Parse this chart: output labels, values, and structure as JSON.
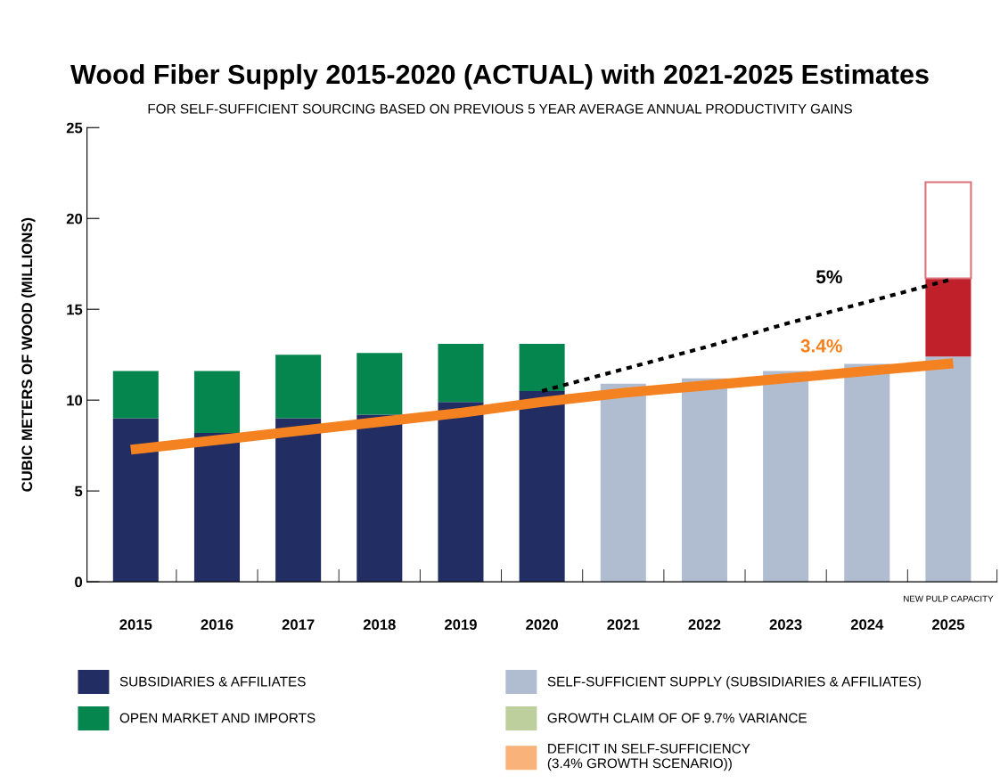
{
  "chart_data": {
    "type": "bar",
    "stacked": true,
    "title": "Wood Fiber Supply 2015-2020 (ACTUAL) with 2021-2025 Estimates",
    "subtitle": "FOR SELF-SUFFICIENT SOURCING BASED ON PREVIOUS 5 YEAR AVERAGE ANNUAL PRODUCTIVITY GAINS",
    "ylabel": "CUBIC METERS OF WOOD (MILLIONS)",
    "categories": [
      "2015",
      "2016",
      "2017",
      "2018",
      "2019",
      "2020",
      "2021",
      "2022",
      "2023",
      "2024",
      "2025"
    ],
    "series": [
      {
        "name": "SUBSIDIARIES & AFFILIATES",
        "color": "#222d63",
        "values": [
          9.0,
          8.2,
          9.0,
          9.2,
          9.9,
          10.5,
          null,
          null,
          null,
          null,
          null
        ]
      },
      {
        "name": "OPEN MARKET AND IMPORTS",
        "color": "#05864f",
        "values": [
          2.6,
          3.4,
          3.5,
          3.4,
          3.2,
          2.6,
          null,
          null,
          null,
          null,
          null
        ]
      },
      {
        "name": "SELF-SUFFICIENT SUPPLY (SUBSIDIARIES & AFFILIATES)",
        "color": "#b0bdd0",
        "values": [
          null,
          null,
          null,
          null,
          null,
          null,
          10.9,
          11.2,
          11.6,
          12.0,
          12.4
        ]
      },
      {
        "name": "GROWTH CLAIM OF OF 9.7% VARIANCE",
        "color": "#bccf9d",
        "values": [
          null,
          null,
          null,
          null,
          null,
          null,
          null,
          null,
          null,
          null,
          null
        ]
      },
      {
        "name": "DEFICIT IN SELF-SUFFICIENCY\n(3.4% GROWTH SCENARIO))",
        "color": "#f9b27a",
        "values": [
          null,
          null,
          null,
          null,
          null,
          null,
          null,
          null,
          null,
          null,
          null
        ]
      },
      {
        "color": "#c0202a",
        "values": [
          null,
          null,
          null,
          null,
          null,
          null,
          null,
          null,
          null,
          null,
          4.3
        ]
      },
      {
        "color": "#d9737a",
        "line_style": "solid",
        "values": [
          null,
          null,
          null,
          null,
          null,
          null,
          null,
          null,
          null,
          null,
          5.3
        ]
      },
      {
        "type": "line",
        "name": "3.4%",
        "color": "#f58220",
        "line_style": "solid",
        "values": [
          7.3,
          7.8,
          8.3,
          8.8,
          9.3,
          9.9,
          10.4,
          10.8,
          11.2,
          11.6,
          12.0
        ]
      },
      {
        "type": "line",
        "name": "5%",
        "color": "#000000",
        "line_style": "dotted",
        "values": [
          null,
          null,
          null,
          null,
          null,
          10.5,
          11.7,
          12.9,
          14.2,
          15.4,
          16.6
        ]
      }
    ],
    "ylim": [
      0,
      25
    ],
    "yticks": [
      0,
      5,
      10,
      15,
      20,
      25
    ],
    "grid": false,
    "legend": "bottom",
    "annotations": [
      "NEW PULP CAPACITY"
    ]
  }
}
